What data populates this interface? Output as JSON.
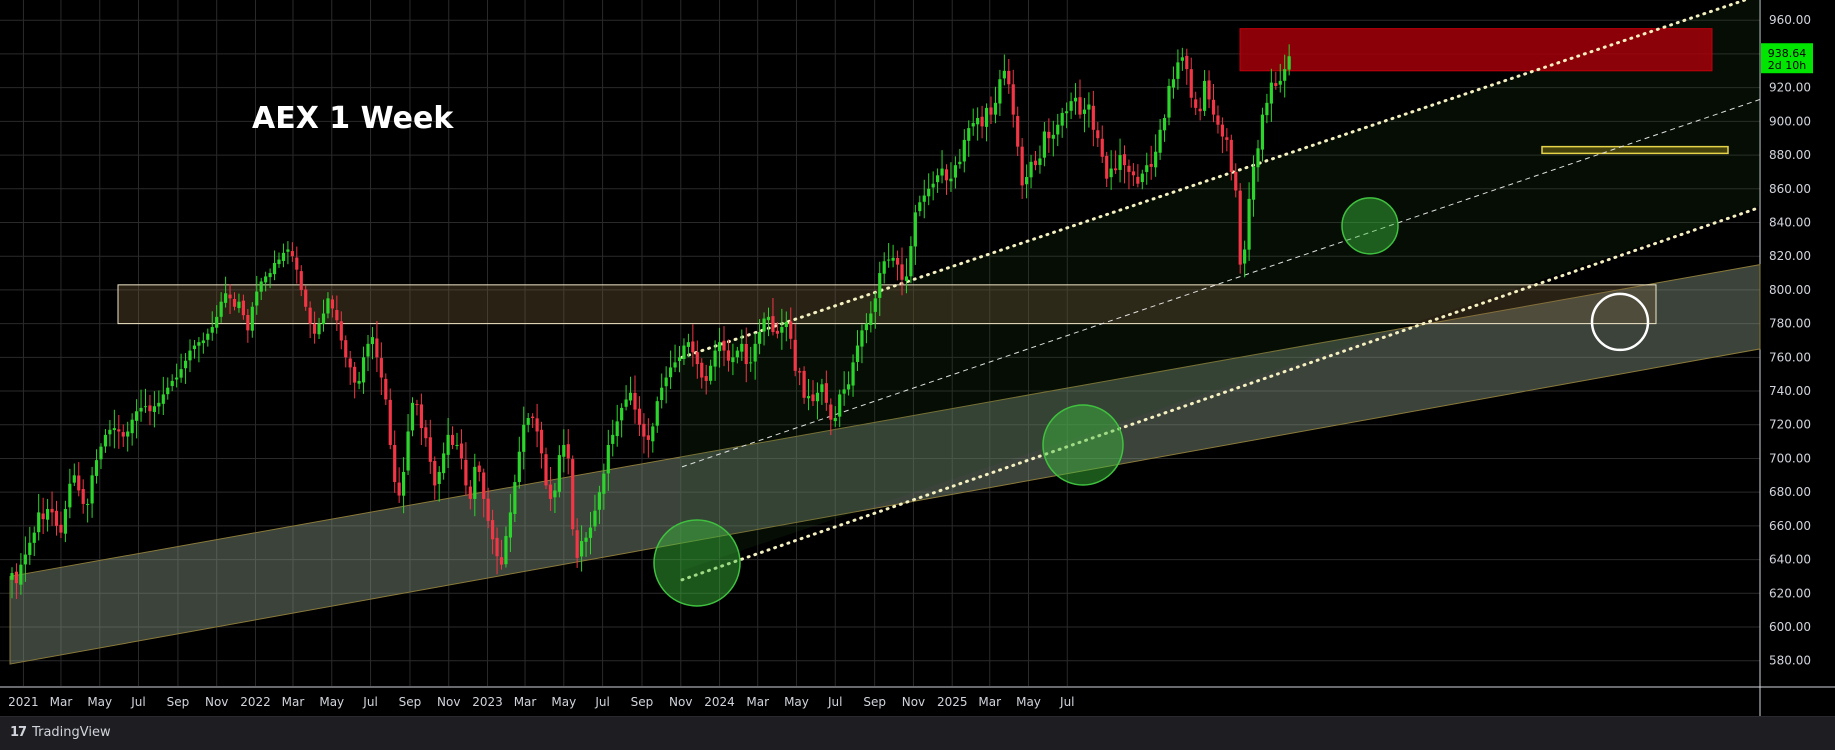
{
  "brand": {
    "logo": "17",
    "name": "TradingView"
  },
  "chart_data": {
    "type": "candlestick",
    "title": "AEX 1 Week",
    "ylim": [
      565,
      972
    ],
    "y_ticks": [
      580,
      600,
      620,
      640,
      660,
      680,
      700,
      720,
      740,
      760,
      780,
      800,
      820,
      840,
      860,
      880,
      900,
      920,
      940,
      960
    ],
    "y_tick_labels": [
      "580.00",
      "600.00",
      "620.00",
      "640.00",
      "660.00",
      "680.00",
      "700.00",
      "720.00",
      "740.00",
      "760.00",
      "780.00",
      "800.00",
      "820.00",
      "840.00",
      "860.00",
      "880.00",
      "900.00",
      "920.00",
      "940.00",
      "960.00"
    ],
    "x_start": "2020-12-14",
    "x_ticks": [
      {
        "date": "2021-01-01",
        "label": "2021"
      },
      {
        "date": "2021-03-01",
        "label": "Mar"
      },
      {
        "date": "2021-05-01",
        "label": "May"
      },
      {
        "date": "2021-07-01",
        "label": "Jul"
      },
      {
        "date": "2021-09-01",
        "label": "Sep"
      },
      {
        "date": "2021-11-01",
        "label": "Nov"
      },
      {
        "date": "2022-01-01",
        "label": "2022"
      },
      {
        "date": "2022-03-01",
        "label": "Mar"
      },
      {
        "date": "2022-05-01",
        "label": "May"
      },
      {
        "date": "2022-07-01",
        "label": "Jul"
      },
      {
        "date": "2022-09-01",
        "label": "Sep"
      },
      {
        "date": "2022-11-01",
        "label": "Nov"
      },
      {
        "date": "2023-01-01",
        "label": "2023"
      },
      {
        "date": "2023-03-01",
        "label": "Mar"
      },
      {
        "date": "2023-05-01",
        "label": "May"
      },
      {
        "date": "2023-07-01",
        "label": "Jul"
      },
      {
        "date": "2023-09-01",
        "label": "Sep"
      },
      {
        "date": "2023-11-01",
        "label": "Nov"
      },
      {
        "date": "2024-01-01",
        "label": "2024"
      },
      {
        "date": "2024-03-01",
        "label": "Mar"
      },
      {
        "date": "2024-05-01",
        "label": "May"
      },
      {
        "date": "2024-07-01",
        "label": "Jul"
      },
      {
        "date": "2024-09-01",
        "label": "Sep"
      },
      {
        "date": "2024-11-01",
        "label": "Nov"
      },
      {
        "date": "2025-01-01",
        "label": "2025"
      },
      {
        "date": "2025-03-01",
        "label": "Mar"
      },
      {
        "date": "2025-05-01",
        "label": "May"
      },
      {
        "date": "2025-07-01",
        "label": "Jul"
      }
    ],
    "price_label": {
      "value": "938.64",
      "countdown": "2d 10h",
      "color": "#00e600"
    },
    "colors": {
      "up": "#2bd52b",
      "down": "#f23645",
      "grid": "#2a2a2a",
      "text": "#d1d4dc"
    },
    "closes": [
      632,
      626,
      637,
      643,
      650,
      656,
      668,
      664,
      670,
      668,
      660,
      656,
      670,
      685,
      690,
      681,
      673,
      673,
      690,
      699,
      707,
      714,
      717,
      718,
      716,
      713,
      716,
      723,
      728,
      730,
      731,
      728,
      731,
      733,
      738,
      742,
      746,
      748,
      753,
      758,
      764,
      767,
      769,
      770,
      774,
      778,
      784,
      793,
      798,
      795,
      790,
      793,
      785,
      776,
      790,
      799,
      805,
      808,
      810,
      816,
      818,
      822,
      824,
      820,
      812,
      800,
      790,
      780,
      774,
      780,
      786,
      795,
      789,
      782,
      770,
      760,
      754,
      745,
      746,
      760,
      768,
      772,
      760,
      748,
      735,
      708,
      686,
      678,
      692,
      716,
      733,
      732,
      718,
      712,
      698,
      684,
      692,
      703,
      714,
      708,
      708,
      700,
      684,
      676,
      695,
      692,
      676,
      663,
      652,
      642,
      637,
      654,
      668,
      686,
      704,
      720,
      724,
      724,
      716,
      703,
      684,
      676,
      681,
      702,
      708,
      700,
      658,
      641,
      651,
      653,
      659,
      669,
      680,
      691,
      708,
      714,
      722,
      730,
      735,
      739,
      729,
      720,
      713,
      711,
      719,
      734,
      742,
      748,
      754,
      757,
      760,
      767,
      769,
      763,
      756,
      748,
      746,
      755,
      764,
      769,
      764,
      758,
      760,
      764,
      768,
      756,
      757,
      768,
      775,
      783,
      784,
      775,
      774,
      778,
      781,
      771,
      752,
      751,
      736,
      737,
      734,
      739,
      744,
      733,
      723,
      724,
      738,
      741,
      744,
      757,
      767,
      776,
      780,
      786,
      795,
      810,
      817,
      818,
      819,
      815,
      806,
      808,
      826,
      846,
      852,
      856,
      860,
      863,
      868,
      872,
      865,
      866,
      874,
      876,
      889,
      896,
      899,
      902,
      897,
      908,
      904,
      911,
      925,
      930,
      922,
      904,
      885,
      862,
      867,
      876,
      874,
      878,
      894,
      890,
      892,
      898,
      905,
      906,
      912,
      914,
      904,
      907,
      910,
      895,
      890,
      879,
      866,
      872,
      871,
      880,
      874,
      870,
      868,
      863,
      869,
      874,
      873,
      882,
      895,
      902,
      921,
      925,
      935,
      938,
      931,
      914,
      908,
      906,
      924,
      913,
      904,
      898,
      891,
      889,
      870,
      859,
      815,
      824,
      854,
      873,
      884,
      904,
      911,
      923,
      921,
      924,
      931,
      938.64
    ]
  },
  "annotations": {
    "resistance_zone": {
      "price_low": 930,
      "price_high": 955,
      "color": "#a0000a"
    },
    "support_zone": {
      "price_low": 780,
      "price_high": 803,
      "color": "#c8b07a"
    },
    "small_zone": {
      "price_low": 881,
      "price_high": 885,
      "color": "#e6d34a"
    }
  }
}
